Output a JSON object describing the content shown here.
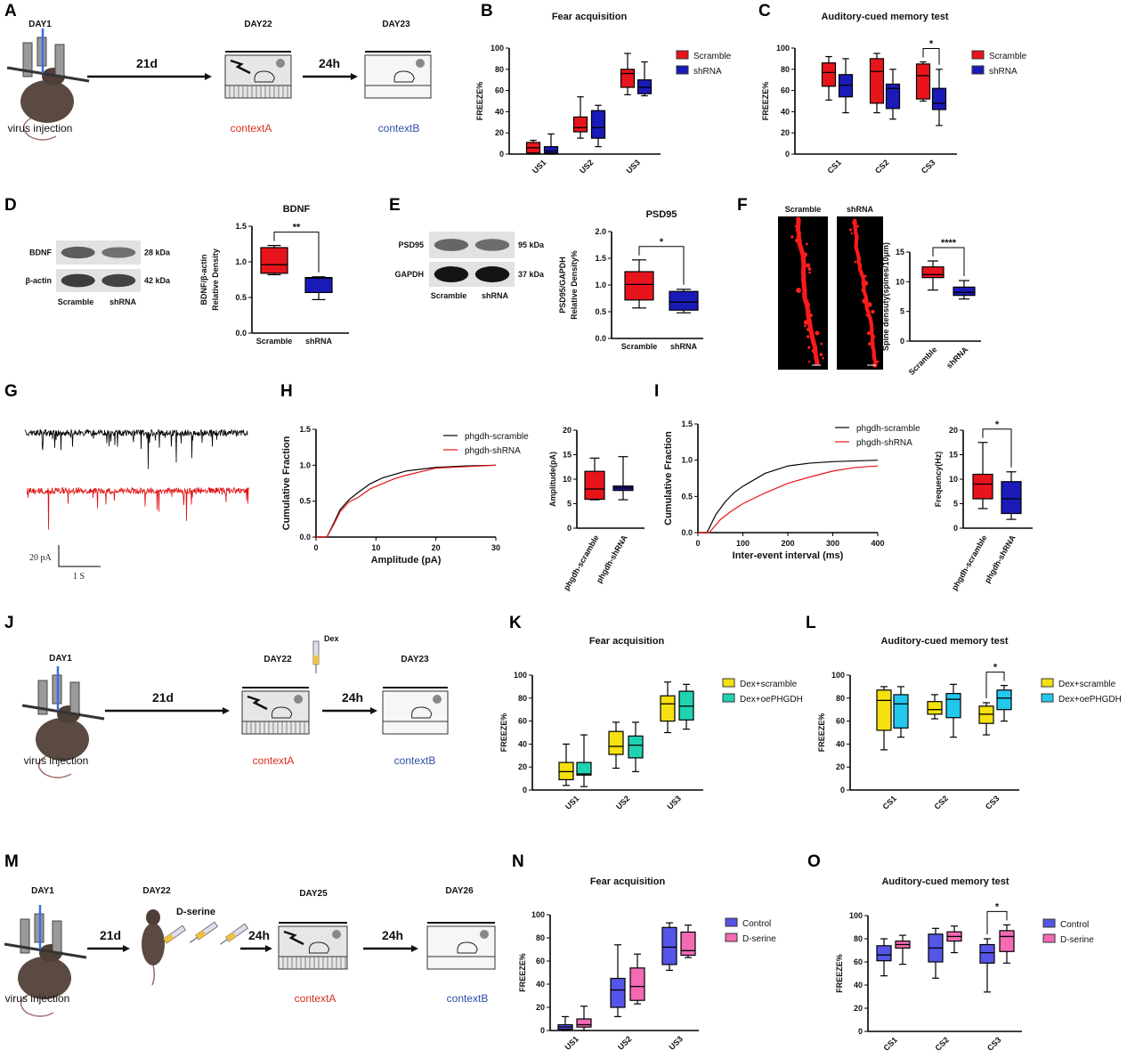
{
  "panel_letters": [
    "A",
    "B",
    "C",
    "D",
    "E",
    "F",
    "G",
    "H",
    "I",
    "J",
    "K",
    "L",
    "M",
    "N",
    "O"
  ],
  "schematics": {
    "A": {
      "days": [
        "DAY1",
        "DAY22",
        "DAY23"
      ],
      "arrows": [
        "21d",
        "24h"
      ],
      "virus": "virus injection",
      "ctxA": "contextA",
      "ctxB": "contextB"
    },
    "J": {
      "days": [
        "DAY1",
        "DAY22",
        "DAY23"
      ],
      "arrows": [
        "21d",
        "24h"
      ],
      "virus": "virus injection",
      "ctxA": "contextA",
      "ctxB": "contextB",
      "drug": "Dex"
    },
    "M": {
      "days": [
        "DAY1",
        "DAY22",
        "DAY25",
        "DAY26"
      ],
      "arrows": [
        "21d",
        "24h",
        "24h"
      ],
      "virus": "virus injection",
      "ctxA": "contextA",
      "ctxB": "contextB",
      "drug": "D-serine"
    }
  },
  "westerns": {
    "D": {
      "rows": [
        "BDNF",
        "β-actin"
      ],
      "kda": [
        "28 kDa",
        "42 kDa"
      ],
      "lanes": [
        "Scramble",
        "shRNA"
      ]
    },
    "E": {
      "rows": [
        "PSD95",
        "GAPDH"
      ],
      "kda": [
        "95 kDa",
        "37 kDa"
      ],
      "lanes": [
        "Scramble",
        "shRNA"
      ]
    }
  },
  "spine_images": {
    "labels": [
      "Scramble",
      "shRNA"
    ]
  },
  "traces": {
    "scale_y": "20 pA",
    "scale_x": "1 S"
  },
  "colors": {
    "contextA": "#d9301f",
    "contextB": "#2d4fa8",
    "dex": "#e01818",
    "dserine": "#ff44dd"
  },
  "chart_data": [
    {
      "type": "box",
      "title": "Fear acquisition",
      "ylabel": "FREEZE%",
      "ylim": [
        0,
        100
      ],
      "yticks": [
        0,
        20,
        40,
        60,
        80,
        100
      ],
      "ytick_labels": [
        "0",
        "20",
        "40",
        "60",
        "80",
        "100"
      ],
      "categories": [
        "US1",
        "US2",
        "US3"
      ],
      "legend": true,
      "series": [
        {
          "name": "Scramble",
          "color": "#e8141c",
          "boxes": [
            [
              0,
              1,
              6,
              11,
              13
            ],
            [
              15,
              21,
              25,
              35,
              54
            ],
            [
              56,
              63,
              76,
              80,
              95
            ]
          ]
        },
        {
          "name": "shRNA",
          "color": "#1a1ab8",
          "boxes": [
            [
              0,
              1,
              3,
              7,
              19
            ],
            [
              7,
              15,
              25,
              41,
              46
            ],
            [
              55,
              57,
              63,
              70,
              87
            ]
          ]
        }
      ]
    },
    {
      "type": "box",
      "title": "Auditory-cued memory test",
      "ylabel": "FREEZE%",
      "ylim": [
        0,
        100
      ],
      "yticks": [
        0,
        20,
        40,
        60,
        80,
        100
      ],
      "ytick_labels": [
        "0",
        "20",
        "40",
        "60",
        "80",
        "100"
      ],
      "categories": [
        "CS1",
        "CS2",
        "CS3"
      ],
      "legend": true,
      "series": [
        {
          "name": "Scramble",
          "color": "#e8141c",
          "boxes": [
            [
              51,
              64,
              77,
              86,
              92
            ],
            [
              39,
              48,
              78,
              90,
              95
            ],
            [
              50,
              52,
              74,
              85,
              87
            ]
          ]
        },
        {
          "name": "shRNA",
          "color": "#1a1ab8",
          "boxes": [
            [
              39,
              54,
              65,
              75,
              90
            ],
            [
              33,
              43,
              62,
              66,
              80
            ],
            [
              27,
              42,
              48,
              62,
              80
            ]
          ]
        }
      ],
      "significance": [
        {
          "between": [
            4,
            5
          ],
          "label": "*"
        }
      ]
    },
    {
      "type": "box",
      "title": "BDNF",
      "ylabel": [
        "BDNF/β-actin",
        "Relative  Density"
      ],
      "ylim": [
        0,
        1.5
      ],
      "yticks": [
        0,
        0.5,
        1,
        1.5
      ],
      "ytick_labels": [
        "0.0",
        "0.5",
        "1.0",
        "1.5"
      ],
      "categories": [
        "Scramble",
        "shRNA"
      ],
      "series": [
        {
          "name": "Scramble",
          "color": "#e8141c",
          "boxes": [
            [
              0.82,
              0.84,
              0.96,
              1.2,
              1.23
            ],
            null
          ]
        },
        {
          "name": "shRNA",
          "color": "#1a1ab8",
          "boxes": [
            null,
            [
              0.47,
              0.57,
              0.77,
              0.78,
              0.79
            ]
          ]
        }
      ],
      "significance": [
        {
          "between": [
            0,
            1
          ],
          "label": "**"
        }
      ]
    },
    {
      "type": "box",
      "title": "PSD95",
      "ylabel": [
        "PSD95/GAPDH",
        "Relative Density%"
      ],
      "ylim": [
        0,
        2
      ],
      "yticks": [
        0,
        0.5,
        1,
        1.5,
        2
      ],
      "ytick_labels": [
        "0.0",
        "0.5",
        "1.0",
        "1.5",
        "2.0"
      ],
      "categories": [
        "Scramble",
        "shRNA"
      ],
      "series": [
        {
          "name": "Scramble",
          "color": "#e8141c",
          "boxes": [
            [
              0.57,
              0.72,
              1.01,
              1.25,
              1.47
            ],
            null
          ]
        },
        {
          "name": "shRNA",
          "color": "#1a1ab8",
          "boxes": [
            null,
            [
              0.48,
              0.53,
              0.68,
              0.88,
              0.92
            ]
          ]
        }
      ],
      "significance": [
        {
          "between": [
            0,
            1
          ],
          "label": "*"
        }
      ]
    },
    {
      "type": "box",
      "ylabel": "Spine densuty(spines/10μm)",
      "ylim": [
        0,
        15
      ],
      "yticks": [
        0,
        5,
        10,
        15
      ],
      "ytick_labels": [
        "0",
        "5",
        "10",
        "15"
      ],
      "categories": [
        "Scramble",
        "shRNA"
      ],
      "series": [
        {
          "name": "Scramble",
          "color": "#e8141c",
          "boxes": [
            [
              8.6,
              10.7,
              11.2,
              12.5,
              13.5
            ],
            null
          ]
        },
        {
          "name": "shRNA",
          "color": "#1a1ab8",
          "boxes": [
            null,
            [
              7.1,
              7.7,
              8.2,
              9.1,
              10.2
            ]
          ]
        }
      ],
      "significance": [
        {
          "between": [
            0,
            1
          ],
          "label": "****"
        }
      ]
    },
    {
      "type": "line",
      "xlabel": "Amplitude (pA)",
      "ylabel": "Cumulative Fraction",
      "xlim": [
        0,
        30
      ],
      "ylim": [
        0,
        1.5
      ],
      "xticks": [
        0,
        10,
        20,
        30
      ],
      "xtick_labels": [
        "0",
        "10",
        "20",
        "30"
      ],
      "yticks": [
        0,
        0.5,
        1,
        1.5
      ],
      "ytick_labels": [
        "0.0",
        "0.5",
        "1.0",
        "1.5"
      ],
      "series": [
        {
          "name": "phgdh-scramble",
          "color": "#000000",
          "x": [
            1.8,
            3,
            4,
            5.5,
            7,
            9,
            11,
            13,
            15,
            20,
            25,
            30
          ],
          "y": [
            0,
            0.2,
            0.38,
            0.52,
            0.62,
            0.74,
            0.82,
            0.87,
            0.92,
            0.97,
            0.99,
            1
          ]
        },
        {
          "name": "phgdh-shRNA",
          "color": "#e8141c",
          "x": [
            1.8,
            3,
            4,
            5.5,
            7,
            9,
            11,
            13,
            15,
            20,
            25,
            30
          ],
          "y": [
            0,
            0.18,
            0.35,
            0.49,
            0.55,
            0.67,
            0.74,
            0.81,
            0.86,
            0.96,
            0.98,
            1
          ]
        }
      ]
    },
    {
      "type": "box",
      "ylabel": "Amplitude(pA)",
      "ylim": [
        0,
        20
      ],
      "yticks": [
        0,
        5,
        10,
        15,
        20
      ],
      "ytick_labels": [
        "0",
        "5",
        "10",
        "15",
        "20"
      ],
      "categories": [
        "phgdh-scramble",
        "phgdh-shRNA"
      ],
      "series": [
        {
          "name": "phgdh-scramble",
          "color": "#e8141c",
          "boxes": [
            [
              5.8,
              5.9,
              8,
              11.6,
              14.3
            ],
            null
          ]
        },
        {
          "name": "phgdh-shRNA",
          "color": "#1a1a9a",
          "boxes": [
            null,
            [
              5.8,
              7.7,
              8.2,
              8.6,
              14.6
            ]
          ]
        }
      ]
    },
    {
      "type": "line",
      "xlabel": "Inter-event interval (ms)",
      "ylabel": "Cumulative Fraction",
      "xlim": [
        0,
        400
      ],
      "ylim": [
        0,
        1.5
      ],
      "xticks": [
        0,
        100,
        200,
        300,
        400
      ],
      "xtick_labels": [
        "0",
        "100",
        "200",
        "300",
        "400"
      ],
      "yticks": [
        0,
        0.5,
        1,
        1.5
      ],
      "ytick_labels": [
        "0.0",
        "0.5",
        "1.0",
        "1.5"
      ],
      "series": [
        {
          "name": "phgdh-scramble",
          "color": "#000000",
          "x": [
            20,
            40,
            60,
            80,
            100,
            150,
            200,
            250,
            300,
            400
          ],
          "y": [
            0,
            0.25,
            0.42,
            0.55,
            0.64,
            0.82,
            0.92,
            0.96,
            0.98,
            1
          ]
        },
        {
          "name": "phgdh-shRNA",
          "color": "#e8141c",
          "x": [
            25,
            50,
            75,
            100,
            150,
            200,
            250,
            300,
            350,
            400
          ],
          "y": [
            0,
            0.18,
            0.3,
            0.4,
            0.55,
            0.68,
            0.77,
            0.85,
            0.9,
            0.92
          ]
        }
      ]
    },
    {
      "type": "box",
      "ylabel": "Frequency(Hz)",
      "ylim": [
        0,
        20
      ],
      "yticks": [
        0,
        5,
        10,
        15,
        20
      ],
      "ytick_labels": [
        "0",
        "5",
        "10",
        "15",
        "20"
      ],
      "categories": [
        "phgdh-scramble",
        "phgdh-shRNA"
      ],
      "series": [
        {
          "name": "phgdh-scramble",
          "color": "#e8141c",
          "boxes": [
            [
              4,
              6,
              9,
              11,
              17.5
            ],
            null
          ]
        },
        {
          "name": "phgdh-shRNA",
          "color": "#1a1ab8",
          "boxes": [
            null,
            [
              1.8,
              3,
              6,
              9.5,
              11.5
            ]
          ]
        }
      ],
      "significance": [
        {
          "between": [
            0,
            1
          ],
          "label": "*"
        }
      ]
    },
    {
      "type": "box",
      "title": "Fear acquisition",
      "ylabel": "FREEZE%",
      "ylim": [
        0,
        100
      ],
      "yticks": [
        0,
        20,
        40,
        60,
        80,
        100
      ],
      "ytick_labels": [
        "0",
        "20",
        "40",
        "60",
        "80",
        "100"
      ],
      "categories": [
        "US1",
        "US2",
        "US3"
      ],
      "legend": true,
      "series": [
        {
          "name": "Dex+scramble",
          "color": "#f5e010",
          "boxes": [
            [
              4,
              9,
              16,
              24,
              40
            ],
            [
              19,
              31,
              38,
              51,
              59
            ],
            [
              50,
              60,
              75,
              82,
              94
            ]
          ]
        },
        {
          "name": "Dex+oePHGDH",
          "color": "#1fd3b0",
          "boxes": [
            [
              3,
              13,
              14,
              24,
              48
            ],
            [
              16,
              28,
              39,
              47,
              59
            ],
            [
              53,
              61,
              73,
              86,
              92
            ]
          ]
        }
      ]
    },
    {
      "type": "box",
      "title": "Auditory-cued memory test",
      "ylabel": "FREEZE%",
      "ylim": [
        0,
        100
      ],
      "yticks": [
        0,
        20,
        40,
        60,
        80,
        100
      ],
      "ytick_labels": [
        "0",
        "20",
        "40",
        "60",
        "80",
        "100"
      ],
      "categories": [
        "CS1",
        "CS2",
        "CS3"
      ],
      "legend": true,
      "series": [
        {
          "name": "Dex+scramble",
          "color": "#f5e010",
          "boxes": [
            [
              35,
              52,
              78,
              87,
              90
            ],
            [
              62,
              66,
              70,
              77,
              83
            ],
            [
              48,
              58,
              66,
              73,
              76
            ]
          ]
        },
        {
          "name": "Dex+oePHGDH",
          "color": "#22c8ec",
          "boxes": [
            [
              46,
              54,
              75,
              83,
              90
            ],
            [
              46,
              63,
              79,
              84,
              92
            ],
            [
              60,
              70,
              80,
              87,
              91
            ]
          ]
        }
      ],
      "significance": [
        {
          "between": [
            4,
            5
          ],
          "label": "*"
        }
      ]
    },
    {
      "type": "box",
      "title": "Fear acquisition",
      "ylabel": "FREEZE%",
      "ylim": [
        0,
        100
      ],
      "yticks": [
        0,
        20,
        40,
        60,
        80,
        100
      ],
      "ytick_labels": [
        "0",
        "20",
        "40",
        "60",
        "80",
        "100"
      ],
      "categories": [
        "US1",
        "US2",
        "US3"
      ],
      "legend": true,
      "series": [
        {
          "name": "Control",
          "color": "#5555e8",
          "boxes": [
            [
              0,
              1,
              3,
              5,
              12
            ],
            [
              12,
              20,
              35,
              45,
              74
            ],
            [
              52,
              57,
              72,
              89,
              93
            ]
          ]
        },
        {
          "name": "D-serine",
          "color": "#f46ab4",
          "boxes": [
            [
              0,
              3,
              5,
              10,
              21
            ],
            [
              23,
              26,
              38,
              54,
              66
            ],
            [
              63,
              65,
              69,
              85,
              91
            ]
          ]
        }
      ]
    },
    {
      "type": "box",
      "title": "Auditory-cued memory test",
      "ylabel": "FREEZE%",
      "ylim": [
        0,
        100
      ],
      "yticks": [
        0,
        20,
        40,
        60,
        80,
        100
      ],
      "ytick_labels": [
        "0",
        "20",
        "40",
        "60",
        "80",
        "100"
      ],
      "categories": [
        "CS1",
        "CS2",
        "CS3"
      ],
      "legend": true,
      "series": [
        {
          "name": "Control",
          "color": "#5555e8",
          "boxes": [
            [
              48,
              61,
              66,
              74,
              80
            ],
            [
              46,
              60,
              72,
              84,
              89
            ],
            [
              34,
              59,
              68,
              75,
              80
            ]
          ]
        },
        {
          "name": "D-serine",
          "color": "#f46ab4",
          "boxes": [
            [
              58,
              72,
              75,
              78,
              83
            ],
            [
              68,
              78,
              82,
              86,
              91
            ],
            [
              59,
              69,
              82,
              87,
              92
            ]
          ]
        }
      ],
      "significance": [
        {
          "between": [
            4,
            5
          ],
          "label": "*"
        }
      ]
    }
  ]
}
